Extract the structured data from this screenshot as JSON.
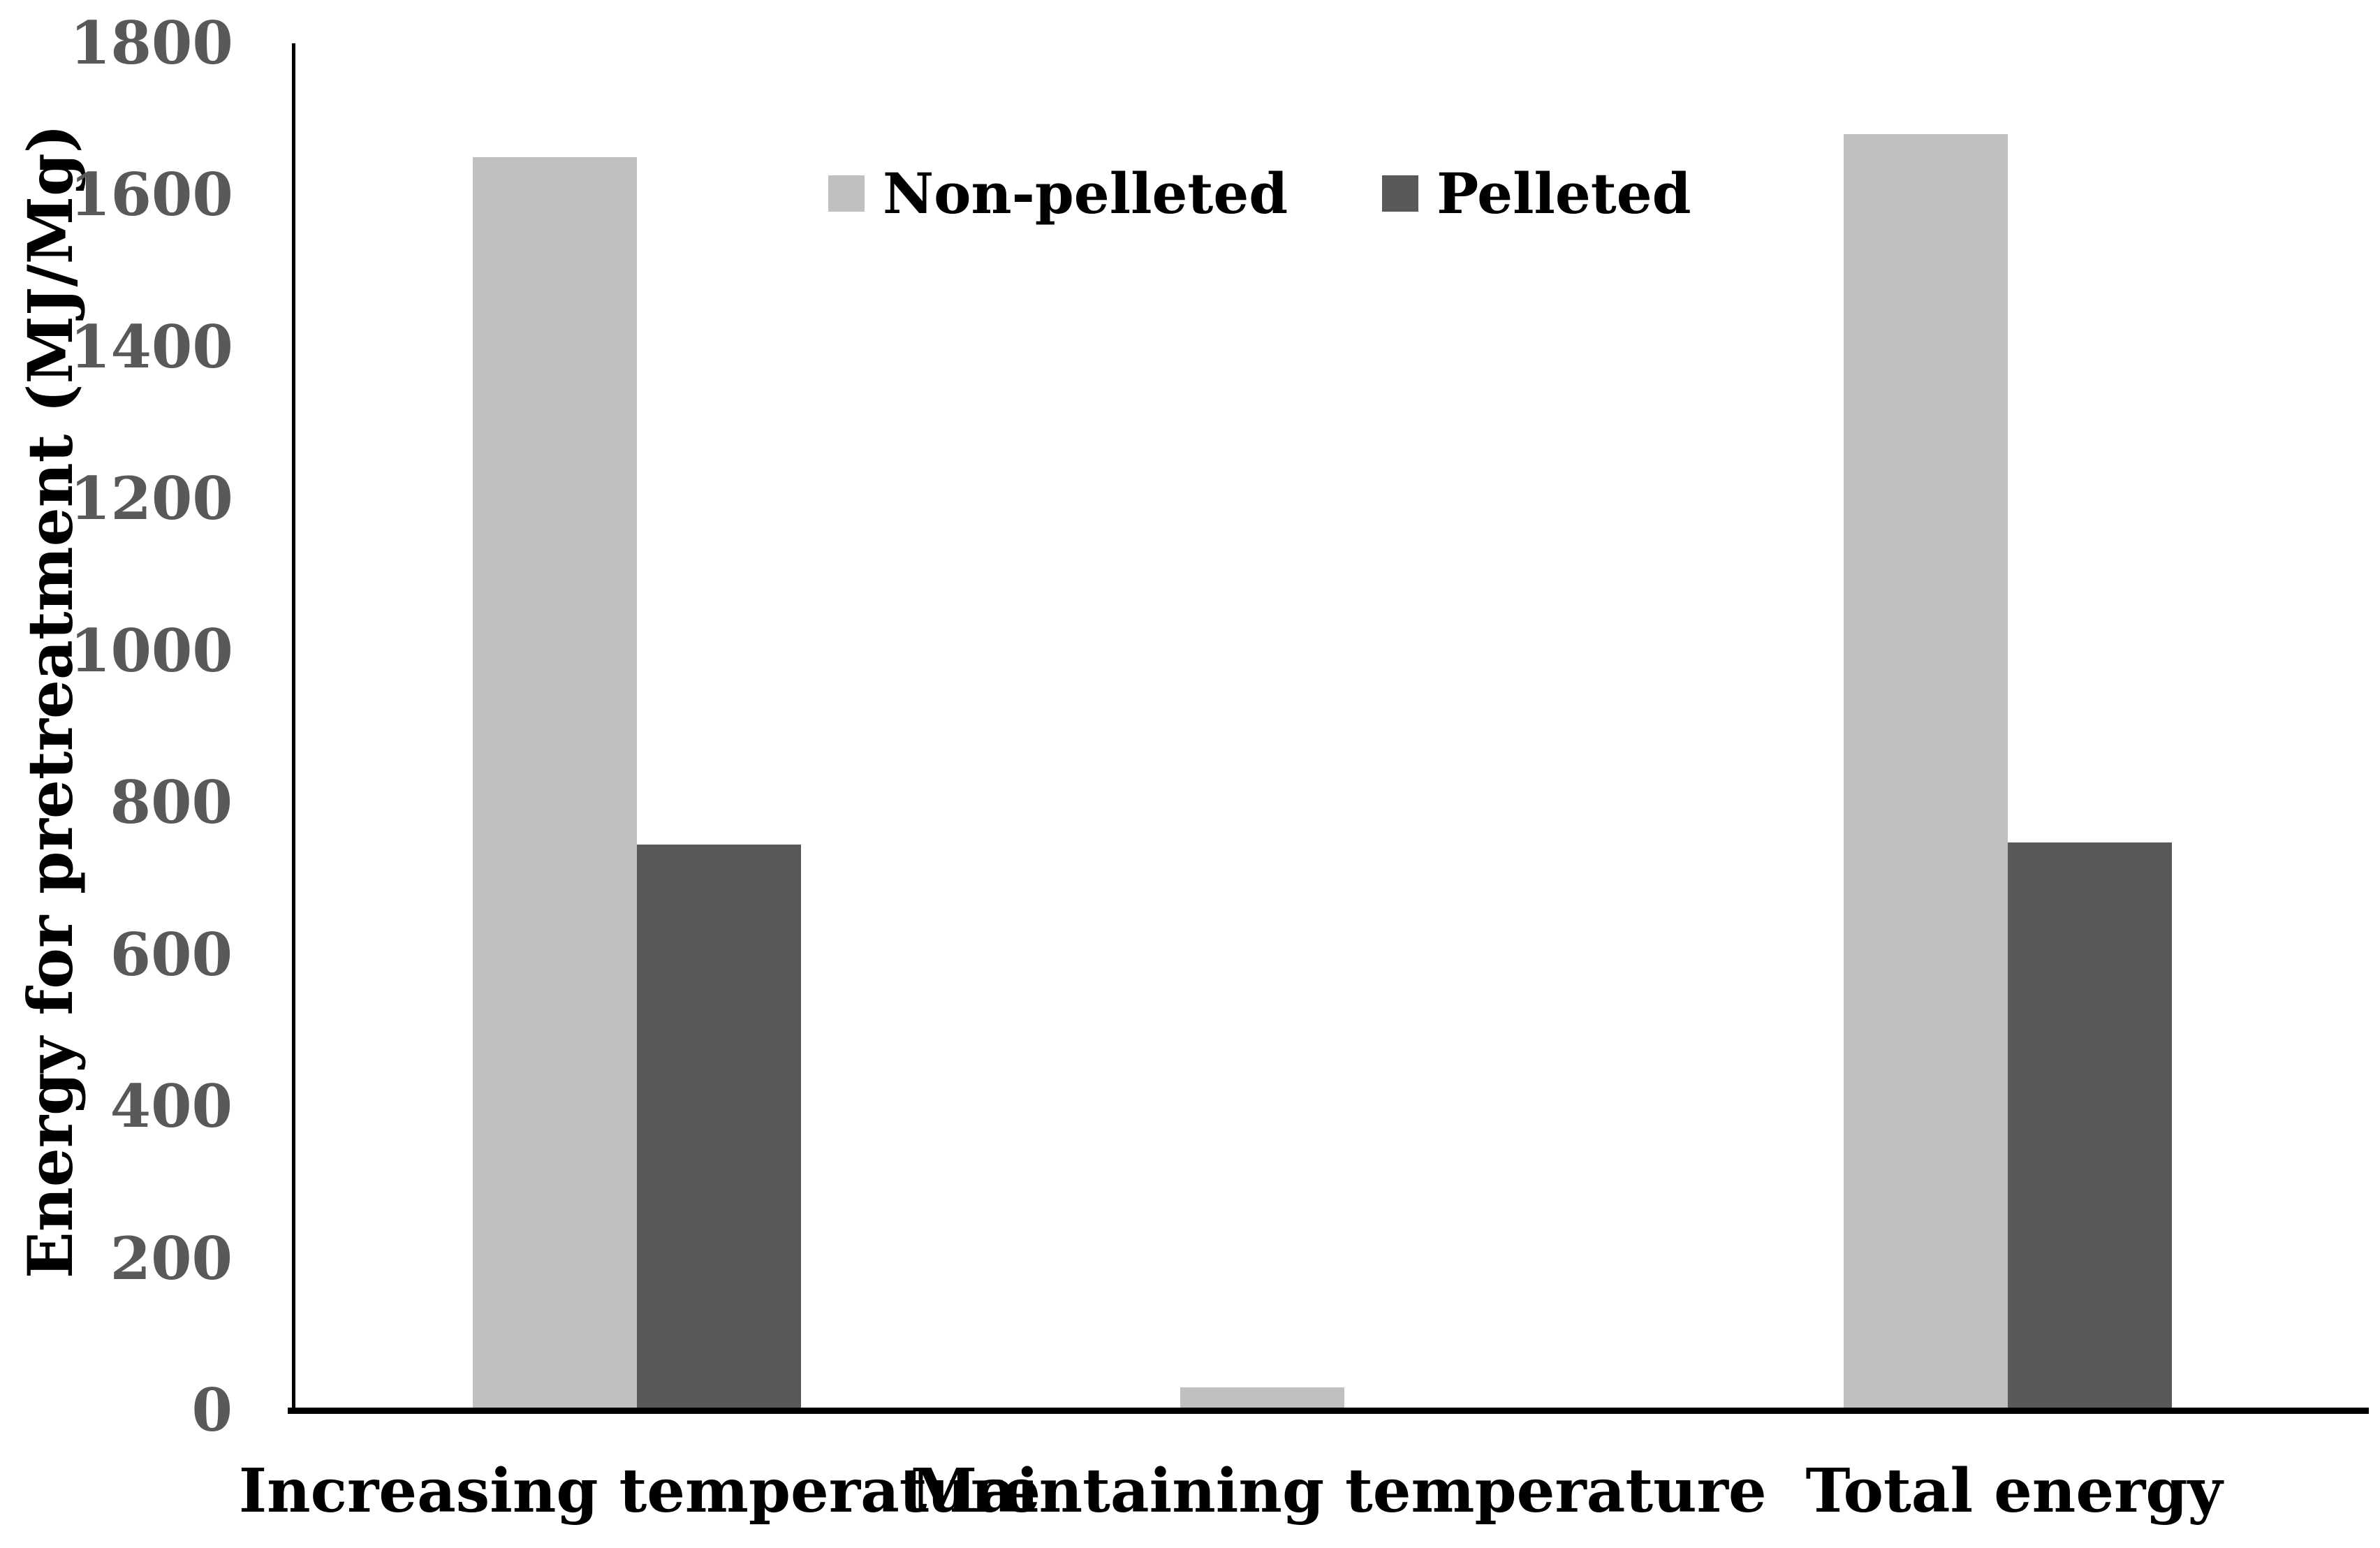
{
  "figure": {
    "background": "#ffffff",
    "tick_label_color": "#595959",
    "axis_color": "#000000",
    "text_color": "#000000"
  },
  "chart_data": {
    "type": "bar",
    "title": "",
    "categories": [
      "Increasing temperature",
      "Maintaining temperature",
      "Total energy"
    ],
    "series": [
      {
        "name": "Non-pelleted",
        "color": "#bfbfbf",
        "values": [
          1650,
          30,
          1680
        ]
      },
      {
        "name": "Pelleted",
        "color": "#595959",
        "values": [
          745,
          3,
          748
        ]
      }
    ],
    "xlabel": "",
    "ylabel": "Energy for pretreatment (MJ/Mg)",
    "ylim": [
      0,
      1800
    ],
    "ytick_step": 200,
    "yticks": [
      0,
      200,
      400,
      600,
      800,
      1000,
      1200,
      1400,
      1600,
      1800
    ],
    "grid": false,
    "legend_position": "top-center",
    "bar_gap_within_group": 0,
    "units": "MJ/Mg"
  }
}
